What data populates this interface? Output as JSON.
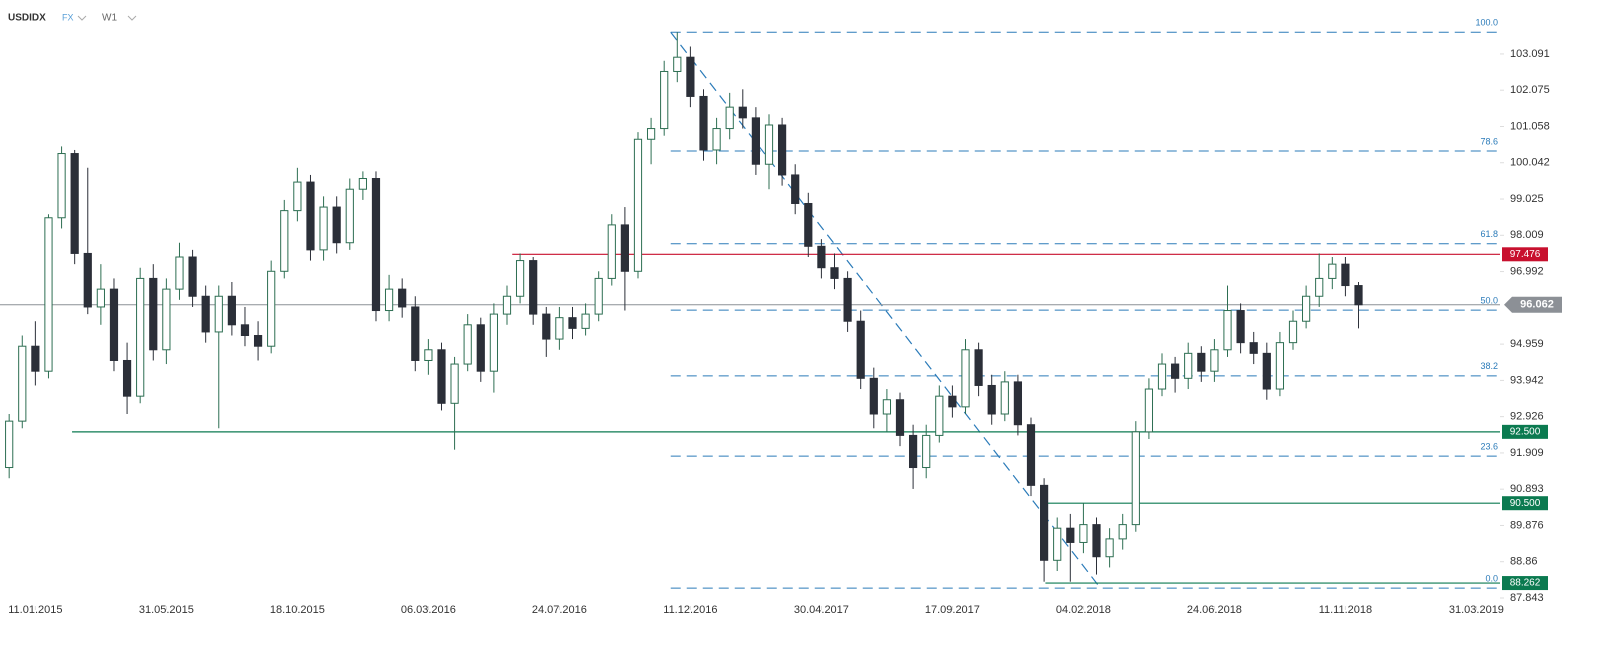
{
  "header": {
    "symbol": "USDIDX",
    "market": "FX",
    "timeframe": "W1"
  },
  "chart_data": {
    "type": "candlestick",
    "candles": [
      [
        91.5,
        93.0,
        91.2,
        92.8
      ],
      [
        92.8,
        95.2,
        92.6,
        94.9
      ],
      [
        94.9,
        95.6,
        93.8,
        94.2
      ],
      [
        94.2,
        98.6,
        94.0,
        98.5
      ],
      [
        98.5,
        100.5,
        98.2,
        100.3
      ],
      [
        100.3,
        100.4,
        97.2,
        97.5
      ],
      [
        97.5,
        99.9,
        95.8,
        96.0
      ],
      [
        96.0,
        97.2,
        95.5,
        96.5
      ],
      [
        96.5,
        96.8,
        94.2,
        94.5
      ],
      [
        94.5,
        95.0,
        93.0,
        93.5
      ],
      [
        93.5,
        97.1,
        93.3,
        96.8
      ],
      [
        96.8,
        97.2,
        94.5,
        94.8
      ],
      [
        94.8,
        96.8,
        94.4,
        96.5
      ],
      [
        96.5,
        97.8,
        96.2,
        97.4
      ],
      [
        97.4,
        97.6,
        96.0,
        96.3
      ],
      [
        96.3,
        96.6,
        95.0,
        95.3
      ],
      [
        95.3,
        96.6,
        92.6,
        96.3
      ],
      [
        96.3,
        96.7,
        95.2,
        95.5
      ],
      [
        95.5,
        96.0,
        94.9,
        95.2
      ],
      [
        95.2,
        95.6,
        94.5,
        94.9
      ],
      [
        94.9,
        97.3,
        94.7,
        97.0
      ],
      [
        97.0,
        99.0,
        96.8,
        98.7
      ],
      [
        98.7,
        99.9,
        98.4,
        99.5
      ],
      [
        99.5,
        99.7,
        97.3,
        97.6
      ],
      [
        97.6,
        99.1,
        97.3,
        98.8
      ],
      [
        98.8,
        99.1,
        97.5,
        97.8
      ],
      [
        97.8,
        99.6,
        97.6,
        99.3
      ],
      [
        99.3,
        99.8,
        99.0,
        99.6
      ],
      [
        99.6,
        99.8,
        95.6,
        95.9
      ],
      [
        95.9,
        96.9,
        95.6,
        96.5
      ],
      [
        96.5,
        96.8,
        95.7,
        96.0
      ],
      [
        96.0,
        96.3,
        94.2,
        94.5
      ],
      [
        94.5,
        95.1,
        94.1,
        94.8
      ],
      [
        94.8,
        95.0,
        93.1,
        93.3
      ],
      [
        93.3,
        94.6,
        92.0,
        94.4
      ],
      [
        94.4,
        95.8,
        94.2,
        95.5
      ],
      [
        95.5,
        95.7,
        93.9,
        94.2
      ],
      [
        94.2,
        96.1,
        93.6,
        95.8
      ],
      [
        95.8,
        96.6,
        95.5,
        96.3
      ],
      [
        96.3,
        97.5,
        96.1,
        97.3
      ],
      [
        97.3,
        97.4,
        95.5,
        95.8
      ],
      [
        95.8,
        96.0,
        94.6,
        95.1
      ],
      [
        95.1,
        96.0,
        94.8,
        95.7
      ],
      [
        95.7,
        96.0,
        95.1,
        95.4
      ],
      [
        95.4,
        96.1,
        95.2,
        95.8
      ],
      [
        95.8,
        97.0,
        95.6,
        96.8
      ],
      [
        96.8,
        98.6,
        96.6,
        98.3
      ],
      [
        98.3,
        98.8,
        95.9,
        97.0
      ],
      [
        97.0,
        100.9,
        96.8,
        100.7
      ],
      [
        100.7,
        101.3,
        100.0,
        101.0
      ],
      [
        101.0,
        102.9,
        100.8,
        102.6
      ],
      [
        102.6,
        103.7,
        102.3,
        103.0
      ],
      [
        103.0,
        103.3,
        101.6,
        101.9
      ],
      [
        101.9,
        102.1,
        100.1,
        100.4
      ],
      [
        100.4,
        101.3,
        100.0,
        101.0
      ],
      [
        101.0,
        102.0,
        100.7,
        101.6
      ],
      [
        101.6,
        102.1,
        101.0,
        101.3
      ],
      [
        101.3,
        101.6,
        99.7,
        100.0
      ],
      [
        100.0,
        101.4,
        99.3,
        101.1
      ],
      [
        101.1,
        101.3,
        99.4,
        99.7
      ],
      [
        99.7,
        100.0,
        98.6,
        98.9
      ],
      [
        98.9,
        99.2,
        97.4,
        97.7
      ],
      [
        97.7,
        97.9,
        96.8,
        97.1
      ],
      [
        97.1,
        97.5,
        96.5,
        96.8
      ],
      [
        96.8,
        97.0,
        95.3,
        95.6
      ],
      [
        95.6,
        95.9,
        93.7,
        94.0
      ],
      [
        94.0,
        94.3,
        92.6,
        93.0
      ],
      [
        93.0,
        93.7,
        92.5,
        93.4
      ],
      [
        93.4,
        93.6,
        92.1,
        92.4
      ],
      [
        92.4,
        92.7,
        90.9,
        91.5
      ],
      [
        91.5,
        92.7,
        91.2,
        92.4
      ],
      [
        92.4,
        93.8,
        92.2,
        93.5
      ],
      [
        93.5,
        93.8,
        92.9,
        93.2
      ],
      [
        93.2,
        95.1,
        93.0,
        94.8
      ],
      [
        94.8,
        95.0,
        93.5,
        93.8
      ],
      [
        93.8,
        94.1,
        92.7,
        93.0
      ],
      [
        93.0,
        94.2,
        92.8,
        93.9
      ],
      [
        93.9,
        94.1,
        92.4,
        92.7
      ],
      [
        92.7,
        92.9,
        90.7,
        91.0
      ],
      [
        91.0,
        91.2,
        88.3,
        88.9
      ],
      [
        88.9,
        90.1,
        88.6,
        89.8
      ],
      [
        89.8,
        90.2,
        88.3,
        89.4
      ],
      [
        89.4,
        90.5,
        89.1,
        89.9
      ],
      [
        89.9,
        90.1,
        88.5,
        89.0
      ],
      [
        89.0,
        89.8,
        88.7,
        89.5
      ],
      [
        89.5,
        90.2,
        89.2,
        89.9
      ],
      [
        89.9,
        92.8,
        89.7,
        92.5
      ],
      [
        92.5,
        94.0,
        92.3,
        93.7
      ],
      [
        93.7,
        94.7,
        93.5,
        94.4
      ],
      [
        94.4,
        94.6,
        93.6,
        94.0
      ],
      [
        94.0,
        95.0,
        93.7,
        94.7
      ],
      [
        94.7,
        94.9,
        93.9,
        94.2
      ],
      [
        94.2,
        95.1,
        93.9,
        94.8
      ],
      [
        94.8,
        96.6,
        94.6,
        95.9
      ],
      [
        95.9,
        96.1,
        94.7,
        95.0
      ],
      [
        95.0,
        95.3,
        94.4,
        94.7
      ],
      [
        94.7,
        95.0,
        93.4,
        93.7
      ],
      [
        93.7,
        95.3,
        93.5,
        95.0
      ],
      [
        95.0,
        95.9,
        94.8,
        95.6
      ],
      [
        95.6,
        96.6,
        95.4,
        96.3
      ],
      [
        96.3,
        97.5,
        96.0,
        96.8
      ],
      [
        96.8,
        97.4,
        96.5,
        97.2
      ],
      [
        97.2,
        97.4,
        96.3,
        96.6
      ],
      [
        96.6,
        96.7,
        95.4,
        96.062
      ]
    ],
    "up_color": "#2d6e52",
    "down_color": "#2b2f38",
    "xlim": [
      -0.7,
      113.8
    ],
    "xticks": [
      {
        "value": 2,
        "label": "11.01.2015"
      },
      {
        "value": 12,
        "label": "31.05.2015"
      },
      {
        "value": 22,
        "label": "18.10.2015"
      },
      {
        "value": 32,
        "label": "06.03.2016"
      },
      {
        "value": 42,
        "label": "24.07.2016"
      },
      {
        "value": 52,
        "label": "11.12.2016"
      },
      {
        "value": 62,
        "label": "30.04.2017"
      },
      {
        "value": 72,
        "label": "17.09.2017"
      },
      {
        "value": 82,
        "label": "04.02.2018"
      },
      {
        "value": 92,
        "label": "24.06.2018"
      },
      {
        "value": 102,
        "label": "11.11.2018"
      },
      {
        "value": 112,
        "label": "31.03.2019"
      }
    ],
    "ylim": [
      87.507,
      104.603
    ],
    "yticks": [
      87.843,
      88.86,
      89.876,
      90.893,
      91.909,
      92.926,
      93.942,
      94.959,
      96.992,
      98.009,
      99.025,
      100.042,
      101.058,
      102.075,
      103.091
    ],
    "levels": [
      {
        "value": 97.476,
        "label": "97.476",
        "color": "#c8102e",
        "from": 38.4
      },
      {
        "value": 92.5,
        "label": "92.500",
        "color": "#0b7a50",
        "from": 4.8
      },
      {
        "value": 90.5,
        "label": "90.500",
        "color": "#0b7a50",
        "from": 78.7
      },
      {
        "value": 88.262,
        "label": "88.262",
        "color": "#0b7a50",
        "from": 79.1
      }
    ],
    "last_price": {
      "value": 96.062,
      "label": "96.062",
      "color": "#8c9096"
    },
    "fib_color": "#2b7bb9",
    "fib_from": 50.5,
    "fib_levels": [
      {
        "value": 103.7,
        "label": "100.0"
      },
      {
        "value": 100.37,
        "label": "78.6"
      },
      {
        "value": 97.77,
        "label": "61.8"
      },
      {
        "value": 95.91,
        "label": "50.0"
      },
      {
        "value": 94.07,
        "label": "38.2"
      },
      {
        "value": 91.82,
        "label": "23.6"
      },
      {
        "value": 88.12,
        "label": "0.0"
      }
    ],
    "trendline": {
      "x": [
        50.5,
        83.3
      ],
      "y": [
        103.7,
        88.12
      ]
    }
  }
}
